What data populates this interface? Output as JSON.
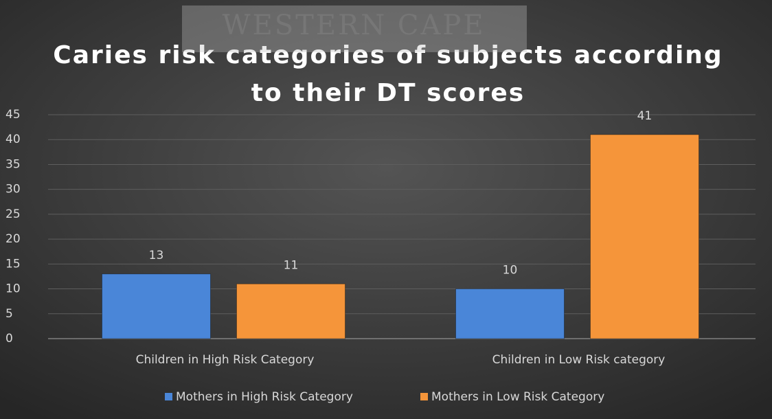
{
  "watermark": "WESTERN CAPE",
  "chart_data": {
    "type": "bar",
    "title": [
      "Caries risk categories of subjects according",
      "to their DT scores"
    ],
    "categories": [
      "Children in High Risk Category",
      "Children in Low Risk category"
    ],
    "series": [
      {
        "name": "Mothers in High Risk Category",
        "color": "#4a86d8",
        "values": [
          13,
          10
        ]
      },
      {
        "name": "Mothers in Low Risk Category",
        "color": "#f5953a",
        "values": [
          11,
          41
        ]
      }
    ],
    "ylim": [
      0,
      45
    ],
    "yticks": [
      0,
      5,
      10,
      15,
      20,
      25,
      30,
      35,
      40,
      45
    ],
    "grid": true,
    "legend": "bottom"
  }
}
